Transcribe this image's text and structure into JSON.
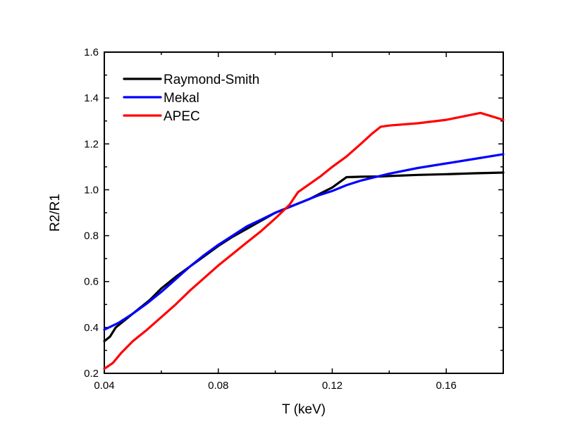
{
  "chart_data": {
    "type": "line",
    "title": "",
    "xlabel": "T (keV)",
    "ylabel": "R2/R1",
    "xlim": [
      0.04,
      0.18
    ],
    "ylim": [
      0.2,
      1.6
    ],
    "xticks": [
      0.04,
      0.08,
      0.12,
      0.16
    ],
    "xtick_labels": [
      "0.04",
      "0.08",
      "0.12",
      "0.16"
    ],
    "yticks": [
      0.2,
      0.4,
      0.6,
      0.8,
      1.0,
      1.2,
      1.4,
      1.6
    ],
    "ytick_labels": [
      "0.2",
      "0.4",
      "0.6",
      "0.8",
      "1.0",
      "1.2",
      "1.4",
      "1.6"
    ],
    "grid": false,
    "legend_position": "top-left",
    "series": [
      {
        "name": "Raymond-Smith",
        "color": "#000000",
        "x": [
          0.04,
          0.042,
          0.044,
          0.047,
          0.05,
          0.053,
          0.056,
          0.06,
          0.065,
          0.07,
          0.075,
          0.08,
          0.085,
          0.09,
          0.095,
          0.1,
          0.104,
          0.108,
          0.112,
          0.116,
          0.12,
          0.125,
          0.13,
          0.137,
          0.14,
          0.15,
          0.16,
          0.17,
          0.18
        ],
        "y": [
          0.34,
          0.36,
          0.4,
          0.43,
          0.46,
          0.49,
          0.52,
          0.57,
          0.62,
          0.665,
          0.71,
          0.755,
          0.795,
          0.83,
          0.865,
          0.9,
          0.92,
          0.94,
          0.96,
          0.985,
          1.01,
          1.055,
          1.057,
          1.058,
          1.06,
          1.065,
          1.068,
          1.072,
          1.075
        ]
      },
      {
        "name": "Mekal",
        "color": "#0000ff",
        "x": [
          0.04,
          0.045,
          0.05,
          0.055,
          0.06,
          0.065,
          0.07,
          0.075,
          0.08,
          0.085,
          0.09,
          0.095,
          0.1,
          0.105,
          0.11,
          0.115,
          0.12,
          0.125,
          0.13,
          0.135,
          0.14,
          0.15,
          0.16,
          0.17,
          0.18
        ],
        "y": [
          0.39,
          0.42,
          0.46,
          0.505,
          0.555,
          0.61,
          0.665,
          0.715,
          0.76,
          0.8,
          0.84,
          0.87,
          0.9,
          0.925,
          0.95,
          0.975,
          0.995,
          1.02,
          1.04,
          1.055,
          1.07,
          1.095,
          1.115,
          1.135,
          1.155
        ]
      },
      {
        "name": "APEC",
        "color": "#ff0000",
        "x": [
          0.04,
          0.043,
          0.046,
          0.05,
          0.055,
          0.06,
          0.065,
          0.07,
          0.075,
          0.08,
          0.085,
          0.09,
          0.095,
          0.1,
          0.105,
          0.108,
          0.112,
          0.116,
          0.12,
          0.125,
          0.13,
          0.134,
          0.137,
          0.14,
          0.15,
          0.16,
          0.172,
          0.176,
          0.18
        ],
        "y": [
          0.22,
          0.245,
          0.29,
          0.34,
          0.39,
          0.445,
          0.5,
          0.56,
          0.615,
          0.67,
          0.72,
          0.77,
          0.82,
          0.875,
          0.935,
          0.99,
          1.025,
          1.06,
          1.1,
          1.145,
          1.2,
          1.245,
          1.275,
          1.28,
          1.29,
          1.305,
          1.335,
          1.32,
          1.305
        ]
      }
    ]
  }
}
